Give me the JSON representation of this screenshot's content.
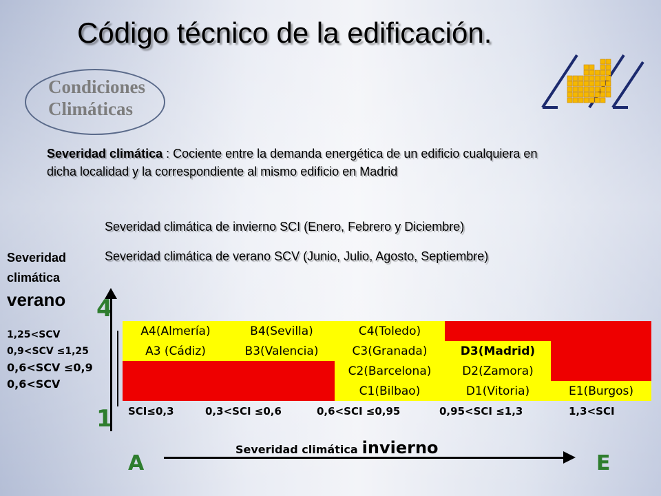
{
  "title": "Código técnico de la edificación.",
  "condiciones": {
    "line1": "Condiciones",
    "line2": "Climáticas"
  },
  "definition": {
    "term": "Severidad climática",
    "text": " : Cociente entre la demanda energética de un edificio cualquiera en dicha localidad y la correspondiente al mismo edificio en Madrid"
  },
  "sci_text": "Severidad climática de invierno SCI (Enero, Febrero y Diciembre)",
  "scv_text": "Severidad climática de verano SCV (Junio, Julio, Agosto, Septiembre)",
  "vertical_axis": {
    "line1": "Severidad",
    "line2": "climática",
    "big": "verano",
    "top": "4",
    "bottom": "1"
  },
  "scv_classes": [
    "1,25<SCV",
    "0,9<SCV ≤1,25",
    "0,6<SCV ≤0,9",
    "0,6<SCV"
  ],
  "sci_classes": [
    "SCI≤0,3",
    "0,3<SCI ≤0,6",
    "0,6<SCI ≤0,95",
    "0,95<SCI ≤1,3",
    "1,3<SCI"
  ],
  "horizontal_axis": {
    "small": "Severidad climática",
    "big": "invierno",
    "left": "A",
    "right": "E"
  },
  "zones": {
    "row4": [
      "A4(Almería)",
      "B4(Sevilla)",
      "C4(Toledo)",
      "",
      ""
    ],
    "row3": [
      "A3 (Cádiz)",
      "B3(Valencia)",
      "C3(Granada)",
      "D3(Madrid)",
      ""
    ],
    "row2": [
      "",
      "",
      "C2(Barcelona)",
      "D2(Zamora)",
      ""
    ],
    "row1": [
      "",
      "",
      "C1(Bilbao)",
      "D1(Vitoria)",
      "E1(Burgos)"
    ]
  },
  "colors": {
    "zone": "#ffff00",
    "empty": "#ee0000",
    "axis_numbers": "#2e7d2e"
  }
}
